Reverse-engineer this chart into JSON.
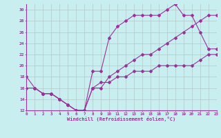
{
  "xlabel": "Windchill (Refroidissement éolien,°C)",
  "bg_color": "#c8eef0",
  "line_color": "#993399",
  "grid_color": "#b0c8c8",
  "xmin": 0,
  "xmax": 23,
  "ymin": 12,
  "ymax": 31,
  "yticks": [
    12,
    14,
    16,
    18,
    20,
    22,
    24,
    26,
    28,
    30
  ],
  "xticks": [
    0,
    1,
    2,
    3,
    4,
    5,
    6,
    7,
    8,
    9,
    10,
    11,
    12,
    13,
    14,
    15,
    16,
    17,
    18,
    19,
    20,
    21,
    22,
    23
  ],
  "line1_x": [
    1,
    2,
    3,
    4,
    5,
    6,
    7,
    8,
    9,
    10,
    11,
    12,
    13,
    14,
    15,
    16,
    17,
    18,
    19,
    20,
    21,
    22,
    23
  ],
  "line1_y": [
    16,
    15,
    15,
    14,
    13,
    12,
    12,
    19,
    19,
    25,
    27,
    28,
    29,
    29,
    29,
    29,
    30,
    31,
    29,
    29,
    26,
    23,
    23
  ],
  "line2_x": [
    0,
    1,
    2,
    3,
    4,
    5,
    6,
    7,
    8,
    9,
    10,
    11,
    12,
    13,
    14,
    15,
    16,
    17,
    18,
    19,
    20,
    21,
    22,
    23
  ],
  "line2_y": [
    18,
    16,
    15,
    15,
    14,
    13,
    12,
    12,
    16,
    16,
    18,
    19,
    20,
    21,
    22,
    22,
    23,
    24,
    25,
    26,
    27,
    28,
    29,
    29
  ],
  "line3_x": [
    0,
    1,
    2,
    3,
    4,
    5,
    6,
    7,
    8,
    9,
    10,
    11,
    12,
    13,
    14,
    15,
    16,
    17,
    18,
    19,
    20,
    21,
    22,
    23
  ],
  "line3_y": [
    16,
    16,
    15,
    15,
    14,
    13,
    12,
    12,
    16,
    17,
    17,
    18,
    18,
    19,
    19,
    19,
    20,
    20,
    20,
    20,
    20,
    21,
    22,
    22
  ]
}
